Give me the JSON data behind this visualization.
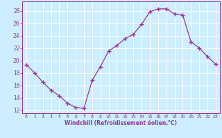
{
  "x": [
    0,
    1,
    2,
    3,
    4,
    5,
    6,
    7,
    8,
    9,
    10,
    11,
    12,
    13,
    14,
    15,
    16,
    17,
    18,
    19,
    20,
    21,
    22,
    23
  ],
  "y": [
    19.3,
    18.0,
    16.5,
    15.2,
    14.3,
    13.1,
    12.4,
    12.3,
    16.8,
    19.0,
    21.5,
    22.4,
    23.5,
    24.2,
    25.8,
    27.8,
    28.3,
    28.3,
    27.5,
    27.3,
    23.0,
    22.0,
    20.6,
    19.4
  ],
  "line_color": "#993399",
  "marker": "+",
  "xlabel": "Windchill (Refroidissement éolien,°C)",
  "xlim": [
    -0.5,
    23.5
  ],
  "ylim": [
    11.5,
    29.5
  ],
  "yticks": [
    12,
    14,
    16,
    18,
    20,
    22,
    24,
    26,
    28
  ],
  "xticks": [
    0,
    1,
    2,
    3,
    4,
    5,
    6,
    7,
    8,
    9,
    10,
    11,
    12,
    13,
    14,
    15,
    16,
    17,
    18,
    19,
    20,
    21,
    22,
    23
  ],
  "bg_color": "#cceeff",
  "grid_color": "#ffffff",
  "tick_label_color": "#993399",
  "xlabel_color": "#993399",
  "spine_color": "#993399"
}
